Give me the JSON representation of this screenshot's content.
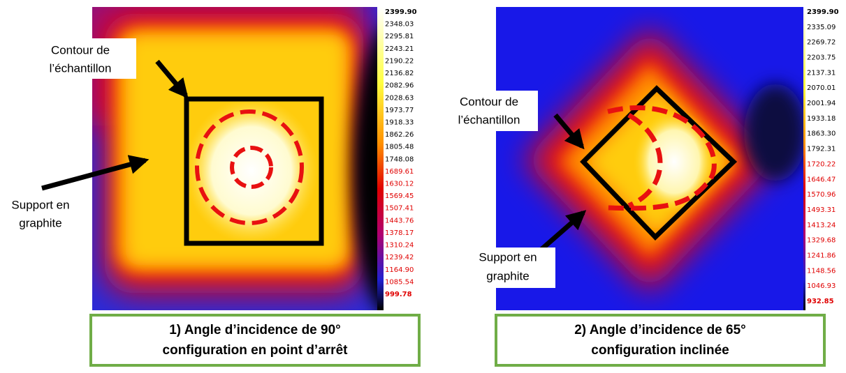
{
  "panels": [
    {
      "annotations": {
        "contour": [
          "Contour de",
          "l’échantillon"
        ],
        "support": [
          "Support en",
          "graphite"
        ]
      },
      "scale": {
        "black": [
          "2399.90",
          "2348.03",
          "2295.81",
          "2243.21",
          "2190.22",
          "2136.82",
          "2082.96",
          "2028.63",
          "1973.77",
          "1918.33",
          "1862.26",
          "1805.48",
          "1748.08"
        ],
        "red": [
          "1689.61",
          "1630.12",
          "1569.45",
          "1507.41",
          "1443.76",
          "1378.17",
          "1310.24",
          "1239.42",
          "1164.90",
          "1085.54",
          "999.78"
        ]
      },
      "caption": [
        "1) Angle d’incidence de 90°",
        "configuration en point d’arrêt"
      ]
    },
    {
      "annotations": {
        "contour": [
          "Contour de",
          "l’échantillon"
        ],
        "support": [
          "Support en",
          "graphite"
        ]
      },
      "scale": {
        "black": [
          "2399.90",
          "2335.09",
          "2269.72",
          "2203.75",
          "2137.31",
          "2070.01",
          "2001.94",
          "1933.18",
          "1863.30",
          "1792.31"
        ],
        "red": [
          "1720.22",
          "1646.47",
          "1570.96",
          "1493.31",
          "1413.24",
          "1329.68",
          "1241.86",
          "1148.56",
          "1046.93",
          "932.85"
        ]
      },
      "caption": [
        "2) Angle d’incidence de 65°",
        "configuration inclinée"
      ]
    }
  ]
}
